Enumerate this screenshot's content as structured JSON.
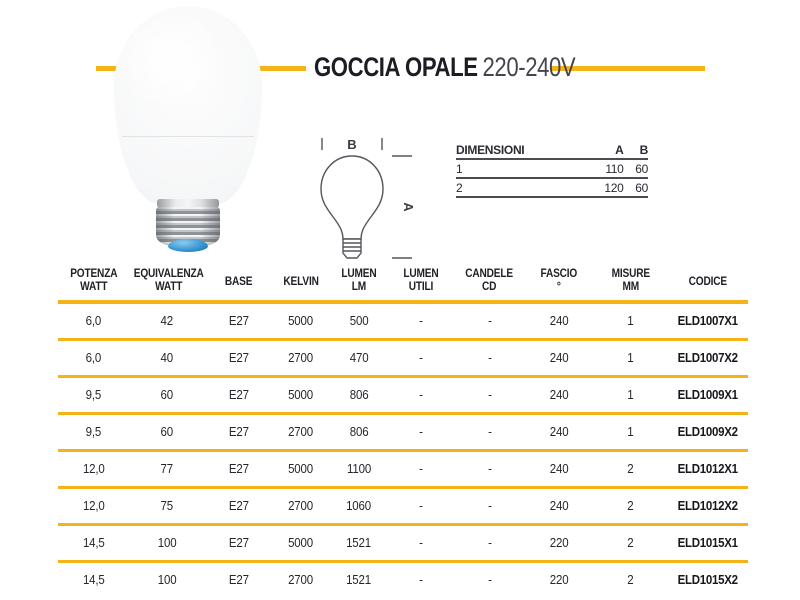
{
  "header": {
    "product_name": "GOCCIA OPALE",
    "voltage": "220-240V"
  },
  "diagram": {
    "width_label": "B",
    "height_label": "A"
  },
  "dimensions_table": {
    "columns": [
      "DIMENSIONI",
      "A",
      "B"
    ],
    "rows": [
      [
        "1",
        "110",
        "60"
      ],
      [
        "2",
        "120",
        "60"
      ]
    ]
  },
  "spec_table": {
    "columns": [
      {
        "line1": "POTENZA",
        "line2": "WATT"
      },
      {
        "line1": "EQUIVALENZA",
        "line2": "WATT"
      },
      {
        "line1": "BASE",
        "line2": ""
      },
      {
        "line1": "KELVIN",
        "line2": ""
      },
      {
        "line1": "LUMEN",
        "line2": "LM"
      },
      {
        "line1": "LUMEN",
        "line2": "UTILI"
      },
      {
        "line1": "CANDELE",
        "line2": "CD"
      },
      {
        "line1": "FASCIO",
        "line2": "°"
      },
      {
        "line1": "MISURE",
        "line2": "MM"
      },
      {
        "line1": "CODICE",
        "line2": ""
      }
    ],
    "col_widths_pct": [
      10.3,
      11.0,
      9.7,
      8.4,
      8.4,
      9.6,
      10.3,
      9.9,
      10.7,
      11.7
    ],
    "rows": [
      [
        "6,0",
        "42",
        "E27",
        "5000",
        "500",
        "-",
        "-",
        "240",
        "1",
        "ELD1007X1"
      ],
      [
        "6,0",
        "40",
        "E27",
        "2700",
        "470",
        "-",
        "-",
        "240",
        "1",
        "ELD1007X2"
      ],
      [
        "9,5",
        "60",
        "E27",
        "5000",
        "806",
        "-",
        "-",
        "240",
        "1",
        "ELD1009X1"
      ],
      [
        "9,5",
        "60",
        "E27",
        "2700",
        "806",
        "-",
        "-",
        "240",
        "1",
        "ELD1009X2"
      ],
      [
        "12,0",
        "77",
        "E27",
        "5000",
        "1100",
        "-",
        "-",
        "240",
        "2",
        "ELD1012X1"
      ],
      [
        "12,0",
        "75",
        "E27",
        "2700",
        "1060",
        "-",
        "-",
        "240",
        "2",
        "ELD1012X2"
      ],
      [
        "14,5",
        "100",
        "E27",
        "5000",
        "1521",
        "-",
        "-",
        "220",
        "2",
        "ELD1015X1"
      ],
      [
        "14,5",
        "100",
        "E27",
        "2700",
        "1521",
        "-",
        "-",
        "220",
        "2",
        "ELD1015X2"
      ]
    ]
  },
  "colors": {
    "accent": "#F6B318",
    "text": "#232329",
    "blue_tip": "#3B97D4"
  }
}
